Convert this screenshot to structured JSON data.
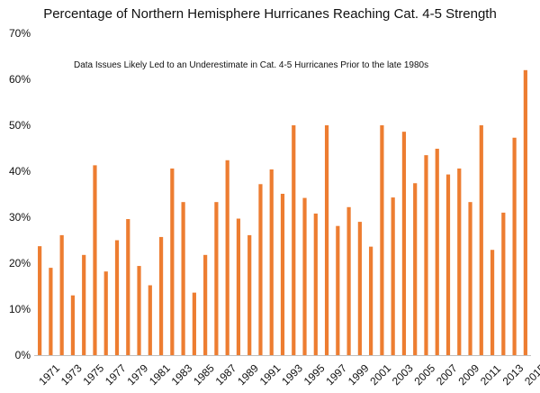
{
  "chart_data": {
    "type": "bar",
    "title": "Percentage of Northern Hemisphere Hurricanes Reaching Cat. 4-5 Strength",
    "annotation": "Data Issues Likely Led to an Underestimate in Cat. 4-5 Hurricanes Prior to the late 1980s",
    "xlabel": "",
    "ylabel": "",
    "bar_color": "#ed7d31",
    "grid": false,
    "legend": "none",
    "ylim": [
      0,
      70
    ],
    "y_ticks": [
      0,
      10,
      20,
      30,
      40,
      50,
      60,
      70
    ],
    "y_tick_labels": [
      "0%",
      "10%",
      "20%",
      "30%",
      "40%",
      "50%",
      "60%",
      "70%"
    ],
    "categories": [
      "1971",
      "1972",
      "1973",
      "1974",
      "1975",
      "1976",
      "1977",
      "1978",
      "1979",
      "1980",
      "1981",
      "1982",
      "1983",
      "1984",
      "1985",
      "1986",
      "1987",
      "1988",
      "1989",
      "1990",
      "1991",
      "1992",
      "1993",
      "1994",
      "1995",
      "1996",
      "1997",
      "1998",
      "1999",
      "2000",
      "2001",
      "2002",
      "2003",
      "2004",
      "2005",
      "2006",
      "2007",
      "2008",
      "2009",
      "2010",
      "2011",
      "2012",
      "2013",
      "2014",
      "2015"
    ],
    "x_tick_labels": [
      "1971",
      "1973",
      "1975",
      "1977",
      "1979",
      "1981",
      "1983",
      "1985",
      "1987",
      "1989",
      "1991",
      "1993",
      "1995",
      "1997",
      "1999",
      "2001",
      "2003",
      "2005",
      "2007",
      "2009",
      "2011",
      "2013",
      "2015"
    ],
    "values": [
      23.7,
      19.0,
      26.1,
      13.0,
      21.8,
      41.3,
      18.2,
      25.0,
      29.6,
      19.4,
      15.2,
      25.7,
      40.6,
      33.3,
      13.6,
      21.8,
      33.3,
      42.4,
      29.7,
      26.1,
      37.2,
      40.4,
      35.1,
      50.0,
      34.2,
      30.8,
      50.0,
      28.1,
      32.2,
      29.0,
      23.6,
      50.0,
      34.3,
      48.6,
      37.4,
      43.5,
      44.9,
      39.3,
      40.6,
      33.3,
      50.0,
      22.9,
      31.0,
      47.3,
      62.0
    ]
  }
}
